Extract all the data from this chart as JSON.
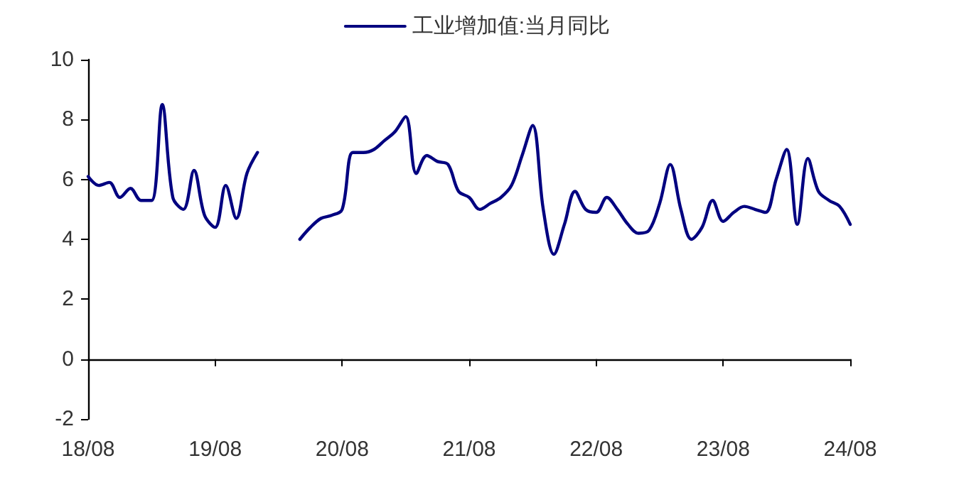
{
  "chart_data": {
    "type": "line",
    "categories": [
      "18/08",
      null,
      null,
      null,
      null,
      null,
      null,
      null,
      null,
      null,
      null,
      null,
      "19/08",
      null,
      null,
      null,
      null,
      null,
      null,
      null,
      null,
      null,
      null,
      null,
      "20/08",
      null,
      null,
      null,
      null,
      null,
      null,
      null,
      null,
      null,
      null,
      null,
      "21/08",
      null,
      null,
      null,
      null,
      null,
      null,
      null,
      null,
      null,
      null,
      null,
      "22/08",
      null,
      null,
      null,
      null,
      null,
      null,
      null,
      null,
      null,
      null,
      null,
      "23/08",
      null,
      null,
      null,
      null,
      null,
      null,
      null,
      null,
      null,
      null,
      null,
      "24/08"
    ],
    "series": [
      {
        "name": "工业增加值:当月同比",
        "color": "#000080",
        "values": [
          6.1,
          5.8,
          5.9,
          5.4,
          5.7,
          5.3,
          5.3,
          8.5,
          5.4,
          5.0,
          6.3,
          4.8,
          4.4,
          5.8,
          4.7,
          6.2,
          6.9,
          null,
          null,
          null,
          4.0,
          4.4,
          4.7,
          4.8,
          5.0,
          6.9,
          6.9,
          7.0,
          7.3,
          7.6,
          8.1,
          6.2,
          6.8,
          6.6,
          6.5,
          5.6,
          5.4,
          5.0,
          5.2,
          5.4,
          5.8,
          6.8,
          7.8,
          5.0,
          3.5,
          4.5,
          5.6,
          5.0,
          4.9,
          5.4,
          5.0,
          4.5,
          4.2,
          4.3,
          5.2,
          6.5,
          5.0,
          4.0,
          4.4,
          5.3,
          4.6,
          4.9,
          5.1,
          5.0,
          4.9,
          6.0,
          7.0,
          4.5,
          6.7,
          5.6,
          5.3,
          5.1,
          4.5
        ]
      }
    ],
    "ylim": [
      -2,
      10
    ],
    "yticks": [
      -2,
      0,
      2,
      4,
      6,
      8,
      10
    ],
    "legend": "top",
    "line_style": "solid"
  }
}
